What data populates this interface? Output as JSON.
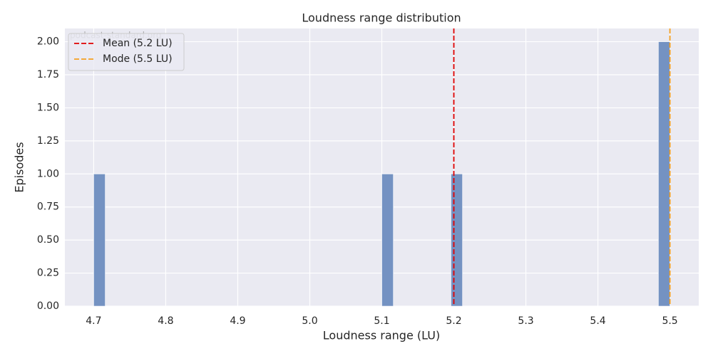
{
  "chart_data": {
    "type": "histogram",
    "title": "Loudness range distribution",
    "xlabel": "Loudness range (LU)",
    "ylabel": "Episodes",
    "watermark": "podcast-standard.org",
    "bins": [
      4.7,
      4.716,
      4.732,
      4.748,
      4.764,
      4.78,
      4.796,
      4.812,
      4.828,
      4.844,
      4.86,
      4.876,
      4.892,
      4.908,
      4.924,
      4.94,
      4.956,
      4.972,
      4.988,
      5.004,
      5.02,
      5.036,
      5.052,
      5.068,
      5.084,
      5.1,
      5.116,
      5.132,
      5.148,
      5.164,
      5.18,
      5.196,
      5.212,
      5.228,
      5.244,
      5.26,
      5.276,
      5.292,
      5.308,
      5.324,
      5.34,
      5.356,
      5.372,
      5.388,
      5.404,
      5.42,
      5.436,
      5.452,
      5.468,
      5.484,
      5.5
    ],
    "values": [
      1,
      0,
      0,
      0,
      0,
      0,
      0,
      0,
      0,
      0,
      0,
      0,
      0,
      0,
      0,
      0,
      0,
      0,
      0,
      0,
      0,
      0,
      0,
      0,
      0,
      1,
      0,
      0,
      0,
      0,
      0,
      1,
      0,
      0,
      0,
      0,
      0,
      0,
      0,
      0,
      0,
      0,
      0,
      0,
      0,
      0,
      0,
      0,
      0,
      2
    ],
    "color": "#7492c2",
    "xlim": [
      4.66,
      5.54
    ],
    "ylim": [
      0,
      2.1
    ],
    "xticks": [
      4.7,
      4.8,
      4.9,
      {
        "value": 5,
        "label": "5.0"
      },
      5.1,
      5.2,
      5.3,
      5.4,
      5.5
    ],
    "yticks": [
      {
        "value": 0,
        "label": "0.00"
      },
      {
        "value": 0.25,
        "label": "0.25"
      },
      {
        "value": 0.5,
        "label": "0.50"
      },
      {
        "value": 0.75,
        "label": "0.75"
      },
      {
        "value": 1,
        "label": "1.00"
      },
      {
        "value": 1.25,
        "label": "1.25"
      },
      {
        "value": 1.5,
        "label": "1.50"
      },
      {
        "value": 1.75,
        "label": "1.75"
      },
      {
        "value": 2,
        "label": "2.00"
      }
    ],
    "lines": [
      {
        "name": "Mean (5.2 LU)",
        "value": 5.2,
        "color": "#e00000"
      },
      {
        "name": "Mode (5.5 LU)",
        "value": 5.5,
        "color": "#f5a020"
      }
    ],
    "grid": true,
    "legend": "upper left"
  }
}
